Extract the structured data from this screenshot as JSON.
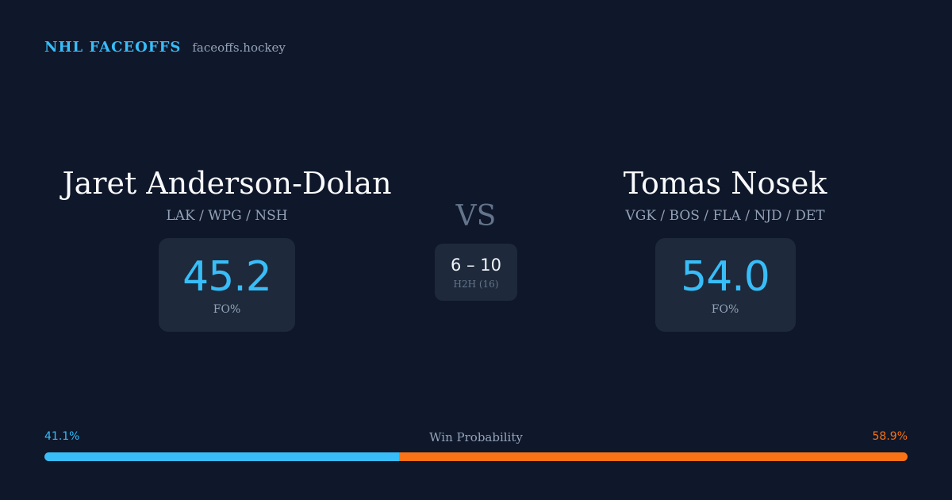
{
  "brand": {
    "name": "NHL FACEOFFS",
    "site": "faceoffs.hockey"
  },
  "player1": {
    "name": "Jaret Anderson-Dolan",
    "teams": "LAK / WPG / NSH",
    "fo_pct": "45.2",
    "fo_label": "FO%"
  },
  "player2": {
    "name": "Tomas Nosek",
    "teams": "VGK / BOS / FLA / NJD / DET",
    "fo_pct": "54.0",
    "fo_label": "FO%"
  },
  "vs_label": "VS",
  "h2h": {
    "score": "6 – 10",
    "label": "H2H (16)"
  },
  "win_probability": {
    "title": "Win Probability",
    "left_text": "41.1%",
    "right_text": "58.9%",
    "left_value": 41.1,
    "right_value": 58.9
  },
  "colors": {
    "background": "#0f172a",
    "card": "#1e293b",
    "accent_blue": "#38bdf8",
    "accent_orange": "#f97316",
    "muted": "#94a3b8"
  }
}
